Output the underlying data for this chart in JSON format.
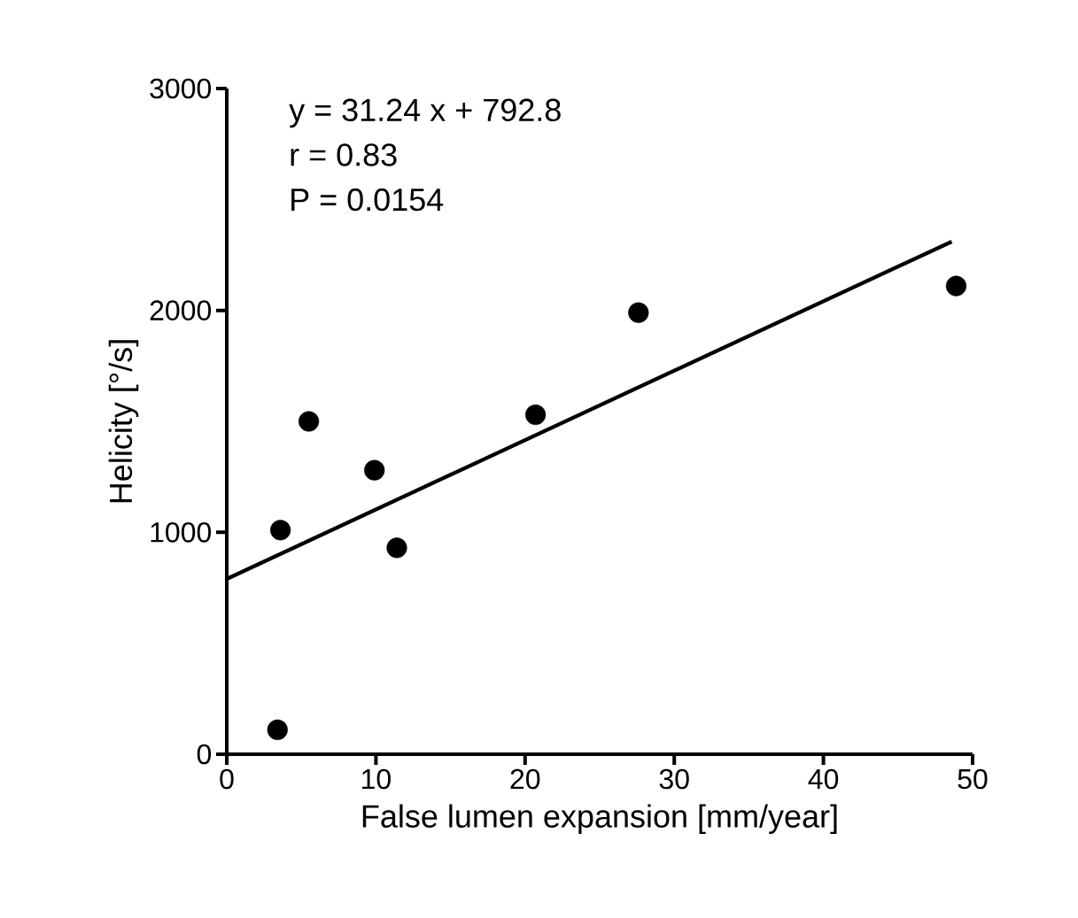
{
  "chart_data": {
    "type": "scatter",
    "xlabel": "False lumen expansion [mm/year]",
    "ylabel": "Helicity [°/s]",
    "annotations": [
      "y = 31.24 x + 792.8",
      "r = 0.83",
      "P = 0.0154"
    ],
    "xlim": [
      0,
      50
    ],
    "ylim": [
      0,
      3000
    ],
    "xticks": [
      0,
      10,
      20,
      30,
      40,
      50
    ],
    "yticks": [
      0,
      1000,
      2000,
      3000
    ],
    "grid": false,
    "series": [
      {
        "marker": "circle",
        "color": "#000000",
        "x": [
          3.4,
          3.6,
          5.5,
          9.9,
          11.4,
          20.7,
          27.6,
          48.9
        ],
        "values": [
          110,
          1010,
          1500,
          1280,
          930,
          1530,
          1990,
          2110
        ]
      },
      {
        "type": "line",
        "marker": "none",
        "line_style": "solid",
        "color": "#000000",
        "x": [
          0,
          48.6
        ],
        "values": [
          790,
          2310
        ]
      }
    ]
  }
}
